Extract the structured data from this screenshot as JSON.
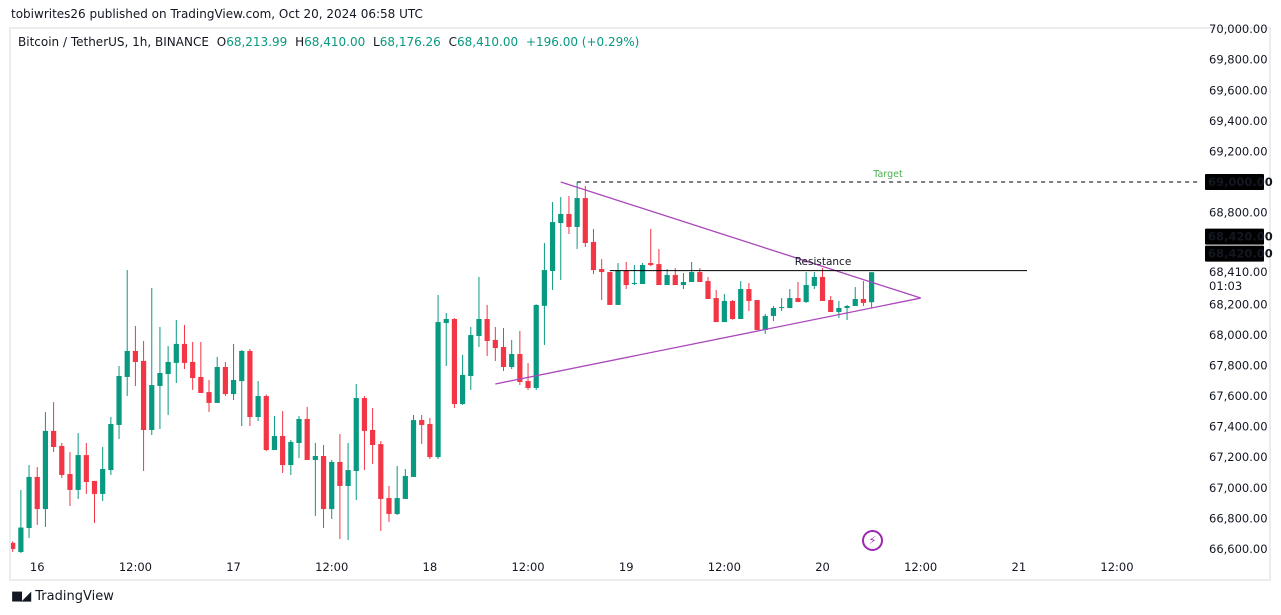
{
  "header": {
    "published": "tobiwrites26 published on TradingView.com, Oct 20, 2024 06:58 UTC"
  },
  "legend": {
    "symbol": "Bitcoin / TetherUS, 1h, BINANCE",
    "o_label": "O",
    "o": "68,213.99",
    "h_label": "H",
    "h": "68,410.00",
    "l_label": "L",
    "l": "68,176.26",
    "c_label": "C",
    "c": "68,410.00",
    "change": "+196.00 (+0.29%)"
  },
  "footer": {
    "brand": "TradingView",
    "logo_mark": "TV"
  },
  "colors": {
    "up": "#089981",
    "down": "#f23645",
    "drawing": "#ab47bc",
    "target_text": "#4caf50"
  },
  "chart_data": {
    "type": "candlestick",
    "title": "Bitcoin / TetherUS, 1h, BINANCE",
    "first_bar": "Oct 15 21:00",
    "interval": "1h",
    "ylim": [
      66600,
      70000
    ],
    "grid": false,
    "price_ticks": [
      70000,
      69800,
      69600,
      69400,
      69200,
      68800,
      68200,
      68000,
      67800,
      67600,
      67400,
      67200,
      67000,
      66800,
      66600
    ],
    "price_tick_labels": [
      "70,000.00",
      "69,800.00",
      "69,600.00",
      "69,400.00",
      "69,200.00",
      "68,800.00",
      "68,200.00",
      "68,000.00",
      "67,800.00",
      "67,600.00",
      "67,400.00",
      "67,200.00",
      "67,000.00",
      "66,800.00",
      "66,600.00"
    ],
    "price_badges": [
      {
        "label": "69,000.00",
        "price": 69000,
        "style": "dark"
      },
      {
        "label": "68,420.00",
        "price": 68420,
        "style": "dark",
        "offset": -1
      },
      {
        "label": "68,420.00",
        "price": 68420,
        "style": "dark",
        "offset": 0
      },
      {
        "label": "68,410.00",
        "price": 68410,
        "style": "plain"
      }
    ],
    "countdown": "01:03",
    "time_ticks": [
      {
        "label": "16",
        "bar": 3
      },
      {
        "label": "12:00",
        "bar": 15
      },
      {
        "label": "17",
        "bar": 27
      },
      {
        "label": "12:00",
        "bar": 39
      },
      {
        "label": "18",
        "bar": 51
      },
      {
        "label": "12:00",
        "bar": 63
      },
      {
        "label": "19",
        "bar": 75
      },
      {
        "label": "12:00",
        "bar": 87
      },
      {
        "label": "20",
        "bar": 99
      },
      {
        "label": "12:00",
        "bar": 111
      },
      {
        "label": "21",
        "bar": 123
      },
      {
        "label": "12:00",
        "bar": 135
      }
    ],
    "ohlc": [
      [
        66640,
        66650,
        66580,
        66600
      ],
      [
        66580,
        66986,
        66570,
        66740
      ],
      [
        66737,
        67149,
        66672,
        67071
      ],
      [
        67071,
        67136,
        66757,
        66861
      ],
      [
        66861,
        67496,
        66744,
        67372
      ],
      [
        67372,
        67561,
        67234,
        67267
      ],
      [
        67274,
        67293,
        67064,
        67084
      ],
      [
        67090,
        67234,
        66881,
        66986
      ],
      [
        66986,
        67358,
        66927,
        67214
      ],
      [
        67214,
        67293,
        66960,
        67038
      ],
      [
        67045,
        67045,
        66770,
        66960
      ],
      [
        66960,
        67267,
        66914,
        67123
      ],
      [
        67116,
        67463,
        67084,
        67417
      ],
      [
        67411,
        67797,
        67319,
        67731
      ],
      [
        67725,
        68424,
        67600,
        67895
      ],
      [
        67895,
        68058,
        67666,
        67823
      ],
      [
        67830,
        67960,
        67110,
        67378
      ],
      [
        67378,
        68307,
        67345,
        67672
      ],
      [
        67666,
        68052,
        67385,
        67751
      ],
      [
        67744,
        67927,
        67476,
        67823
      ],
      [
        67817,
        68098,
        67685,
        67941
      ],
      [
        67941,
        68065,
        67777,
        67817
      ],
      [
        67823,
        67954,
        67640,
        67718
      ],
      [
        67725,
        67954,
        67620,
        67620
      ],
      [
        67626,
        67705,
        67496,
        67555
      ],
      [
        67555,
        67856,
        67555,
        67790
      ],
      [
        67790,
        67823,
        67600,
        67613
      ],
      [
        67613,
        67941,
        67574,
        67705
      ],
      [
        67698,
        67901,
        67404,
        67895
      ],
      [
        67895,
        67908,
        67404,
        67463
      ],
      [
        67463,
        67698,
        67437,
        67600
      ],
      [
        67600,
        67610,
        67240,
        67247
      ],
      [
        67247,
        67470,
        67247,
        67339
      ],
      [
        67339,
        67502,
        67097,
        67149
      ],
      [
        67149,
        67313,
        67084,
        67300
      ],
      [
        67293,
        67470,
        67195,
        67450
      ],
      [
        67450,
        67529,
        67182,
        67182
      ],
      [
        67182,
        67293,
        66816,
        67208
      ],
      [
        67208,
        67280,
        66737,
        66861
      ],
      [
        66861,
        67182,
        66796,
        67169
      ],
      [
        67169,
        67352,
        66665,
        67012
      ],
      [
        67012,
        67293,
        66659,
        67116
      ],
      [
        67110,
        67679,
        66920,
        67587
      ],
      [
        67587,
        67600,
        67116,
        67372
      ],
      [
        67378,
        67522,
        67156,
        67280
      ],
      [
        67286,
        67306,
        66718,
        66927
      ],
      [
        66933,
        67012,
        66777,
        66829
      ],
      [
        66829,
        67143,
        66822,
        66933
      ],
      [
        66927,
        67123,
        66927,
        67077
      ],
      [
        67071,
        67476,
        67071,
        67443
      ],
      [
        67443,
        67476,
        67287,
        67411
      ],
      [
        67417,
        67457,
        67188,
        67201
      ],
      [
        67201,
        68261,
        67188,
        68084
      ],
      [
        68078,
        68143,
        67797,
        68104
      ],
      [
        68104,
        68110,
        67522,
        67548
      ],
      [
        67548,
        67869,
        67542,
        67738
      ],
      [
        67731,
        68052,
        67640,
        67999
      ],
      [
        67993,
        68379,
        67921,
        68104
      ],
      [
        68104,
        68196,
        67862,
        67960
      ],
      [
        67967,
        68052,
        67829,
        67914
      ],
      [
        67921,
        68045,
        67764,
        67790
      ],
      [
        67790,
        67967,
        67777,
        67875
      ],
      [
        67875,
        68026,
        67672,
        67692
      ],
      [
        67698,
        67816,
        67640,
        67653
      ],
      [
        67653,
        68200,
        67640,
        68196
      ],
      [
        68190,
        68601,
        67934,
        68424
      ],
      [
        68418,
        68869,
        68294,
        68738
      ],
      [
        68732,
        68902,
        68359,
        68791
      ],
      [
        68791,
        68908,
        68660,
        68706
      ],
      [
        68706,
        69000,
        68562,
        68895
      ],
      [
        68895,
        68974,
        68575,
        68601
      ],
      [
        68608,
        68693,
        68398,
        68424
      ],
      [
        68431,
        68496,
        68228,
        68411
      ],
      [
        68411,
        68411,
        68196,
        68196
      ],
      [
        68196,
        68470,
        68196,
        68418
      ],
      [
        68418,
        68477,
        68300,
        68326
      ],
      [
        68333,
        68457,
        68326,
        68340
      ],
      [
        68333,
        68470,
        68333,
        68457
      ],
      [
        68470,
        68693,
        68450,
        68457
      ],
      [
        68463,
        68562,
        68326,
        68326
      ],
      [
        68326,
        68431,
        68326,
        68392
      ],
      [
        68392,
        68437,
        68326,
        68326
      ],
      [
        68326,
        68405,
        68300,
        68346
      ],
      [
        68346,
        68477,
        68346,
        68411
      ],
      [
        68411,
        68437,
        68346,
        68346
      ],
      [
        68352,
        68379,
        68235,
        68235
      ],
      [
        68241,
        68294,
        68084,
        68084
      ],
      [
        68084,
        68267,
        68084,
        68222
      ],
      [
        68222,
        68228,
        68100,
        68104
      ],
      [
        68104,
        68352,
        68104,
        68300
      ],
      [
        68300,
        68339,
        68156,
        68222
      ],
      [
        68228,
        68228,
        68032,
        68032
      ],
      [
        68032,
        68137,
        68006,
        68124
      ],
      [
        68124,
        68189,
        68091,
        68176
      ],
      [
        68176,
        68241,
        68156,
        68182
      ],
      [
        68176,
        68300,
        68176,
        68241
      ],
      [
        68241,
        68346,
        68215,
        68215
      ],
      [
        68215,
        68411,
        68209,
        68326
      ],
      [
        68320,
        68411,
        68300,
        68379
      ],
      [
        68379,
        68437,
        68222,
        68222
      ],
      [
        68228,
        68254,
        68150,
        68150
      ],
      [
        68150,
        68222,
        68111,
        68176
      ],
      [
        68176,
        68196,
        68097,
        68189
      ],
      [
        68189,
        68313,
        68189,
        68235
      ],
      [
        68235,
        68352,
        68189,
        68209
      ],
      [
        68213.99,
        68410,
        68176.26,
        68410
      ]
    ],
    "drawings": [
      {
        "name": "triangle-upper-trendline",
        "from": {
          "bar": 67,
          "price": 69000
        },
        "to": {
          "bar": 111,
          "price": 68241
        }
      },
      {
        "name": "triangle-lower-trendline",
        "from": {
          "bar": 59,
          "price": 67679
        },
        "to": {
          "bar": 111,
          "price": 68241
        }
      },
      {
        "name": "resistance-line",
        "from": {
          "bar": 73,
          "price": 68420
        },
        "to": {
          "bar": 124,
          "price": 68420
        },
        "label": "Resistance"
      },
      {
        "name": "target-line",
        "from": {
          "bar": 69,
          "price": 69000
        },
        "to": {
          "bar": 145,
          "price": 69000
        },
        "label": "Target",
        "dashed": true
      }
    ]
  }
}
